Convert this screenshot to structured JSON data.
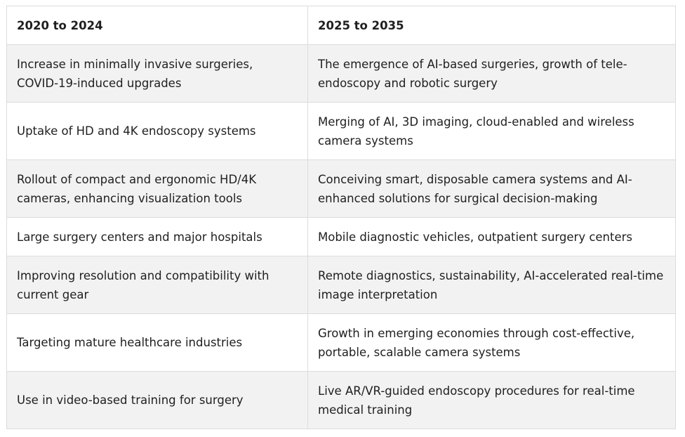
{
  "table": {
    "headers": [
      "2020 to 2024",
      "2025 to 2035"
    ],
    "rows": [
      [
        "Increase in minimally invasive surgeries, COVID-19-induced upgrades",
        "The emergence of AI-based surgeries, growth of tele-endoscopy and robotic surgery"
      ],
      [
        "Uptake of HD and 4K endoscopy systems",
        "Merging of AI, 3D imaging, cloud-enabled and wireless camera systems"
      ],
      [
        "Rollout of compact and ergonomic HD/4K cameras, enhancing visualization tools",
        "Conceiving smart, disposable camera systems and AI-enhanced solutions for surgical decision-making"
      ],
      [
        "Large surgery centers and major hospitals",
        "Mobile diagnostic vehicles, outpatient surgery centers"
      ],
      [
        "Improving resolution and compatibility with current gear",
        "Remote diagnostics, sustainability, AI-accelerated real-time image interpretation"
      ],
      [
        "Targeting mature healthcare industries",
        "Growth in emerging economies through cost-effective, portable, scalable camera systems"
      ],
      [
        "Use in video-based training for surgery",
        "Live AR/VR-guided endoscopy procedures for real-time medical training"
      ]
    ]
  }
}
